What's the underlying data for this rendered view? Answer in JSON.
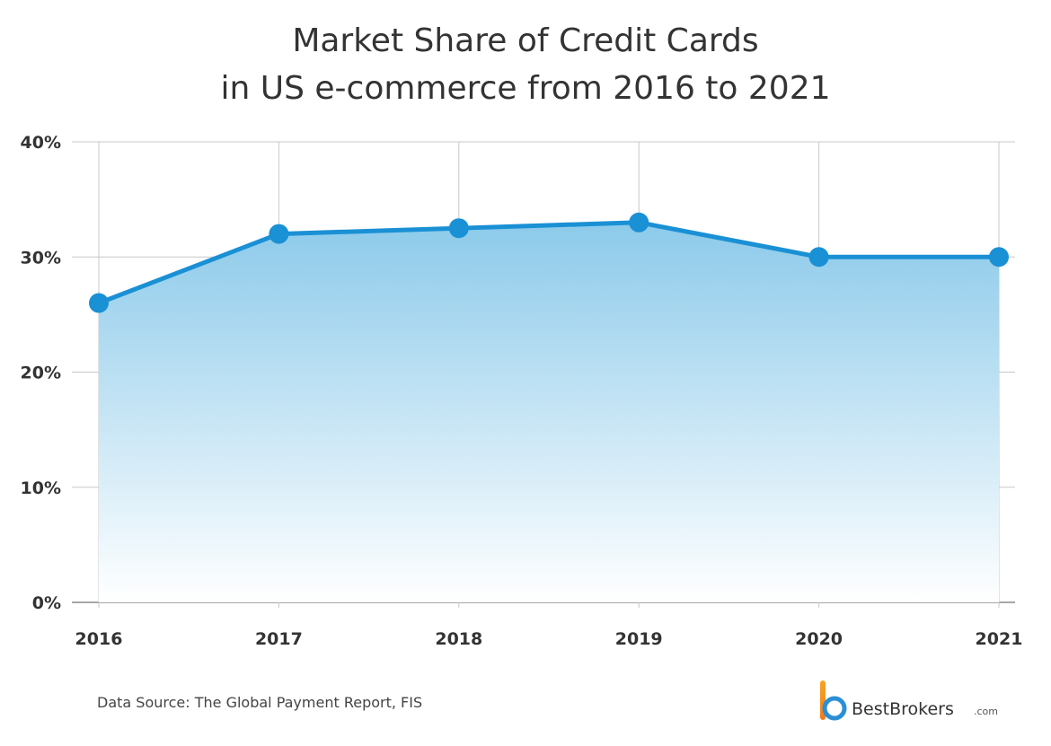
{
  "chart_data": {
    "type": "area",
    "title_line1": "Market Share of Credit Cards",
    "title_line2": "in US e-commerce from 2016 to 2021",
    "xlabel": "",
    "ylabel": "",
    "x": [
      "2016",
      "2017",
      "2018",
      "2019",
      "2020",
      "2021"
    ],
    "values": [
      26,
      32,
      32.5,
      33,
      30,
      30
    ],
    "ylim": [
      0,
      40
    ],
    "yticks": [
      0,
      10,
      20,
      30,
      40
    ],
    "ytick_labels": [
      "0%",
      "10%",
      "20%",
      "30%",
      "40%"
    ],
    "grid": true,
    "legend": "none",
    "line_color": "#1a90d5",
    "fill_top_color": "#8ccaea",
    "fill_bottom_color": "#ffffff"
  },
  "footer": {
    "source": "Data Source: The Global Payment Report, FIS",
    "brand_name": "BestBrokers",
    "brand_suffix": ".com",
    "logo_icon": "bestbrokers-logo-icon"
  }
}
